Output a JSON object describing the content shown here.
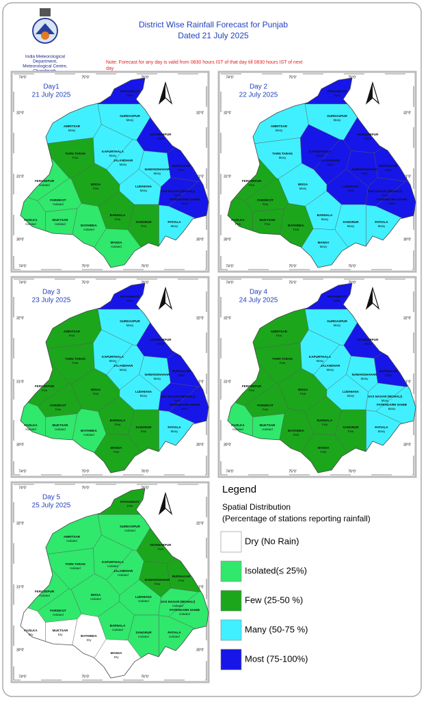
{
  "header": {
    "org": [
      "India Meteorological",
      "Department,",
      "Meteorological Centre,",
      "Chandigarh."
    ],
    "title": "District Wise Rainfall Forecast for Punjab",
    "dated": "Dated 21 July 2025",
    "note": [
      "Note: Forecast for any day is valid from 0830 hours IST of that day till 0830 hours IST of next",
      "day"
    ]
  },
  "graticule": {
    "lon": [
      "74°0'",
      "75°0'",
      "76°0'"
    ],
    "lat": [
      "32°0'",
      "31°0'",
      "30°0'"
    ]
  },
  "districts": [
    "PATHANKOT",
    "GURDASPUR",
    "AMRITSAR",
    "HOSHIARPUR",
    "TARN TARAN",
    "KAPURTHALA",
    "JALANDHAR",
    "NAWANSHAHAR",
    "RUPNAGAR",
    "FEROZEPUR",
    "MOGA",
    "LUDHIANA",
    "SAS NAGAR (MOHALI)",
    "FATEHGARH SAHIB",
    "FARIDKOT",
    "BARNALA",
    "FAZILKA",
    "MUKTSAR",
    "SANGRUR",
    "PATIALA",
    "BATHINDA",
    "MANSA"
  ],
  "maps": [
    {
      "day": "Day1",
      "date": "21 July 2025",
      "status": [
        "Most",
        "Many",
        "Many",
        "Most",
        "Few",
        "Many",
        "Many",
        "Many",
        "Most",
        "Isolated",
        "Few",
        "Many",
        "Most",
        "Most",
        "Isolated",
        "Few",
        "Isolated",
        "Isolated",
        "Few",
        "Many",
        "Isolated",
        "Isolated"
      ]
    },
    {
      "day": "Day 2",
      "date": "22 July 2025",
      "status": [
        "Most",
        "Many",
        "Many",
        "Most",
        "Many",
        "Most",
        "Most",
        "Most",
        "Most",
        "Few",
        "Many",
        "Most",
        "Most",
        "Most",
        "Few",
        "Many",
        "Few",
        "Few",
        "Many",
        "Many",
        "Few",
        "Many"
      ]
    },
    {
      "day": "Day 3",
      "date": "23 July 2025",
      "status": [
        "Most",
        "Many",
        "Few",
        "Most",
        "Few",
        "Many",
        "Many",
        "Many",
        "Most",
        "Few",
        "Few",
        "Many",
        "Most",
        "Most",
        "Few",
        "Few",
        "Isolated",
        "Isolated",
        "Few",
        "Many",
        "Isolated",
        "Few"
      ]
    },
    {
      "day": "Day 4",
      "date": "24 July 2025",
      "status": [
        "Most",
        "Many",
        "Few",
        "Most",
        "Few",
        "Many",
        "Many",
        "Many",
        "Most",
        "Few",
        "Few",
        "Many",
        "Many",
        "Many",
        "Few",
        "Few",
        "Isolated",
        "Isolated",
        "Few",
        "Many",
        "Few",
        "Few"
      ]
    },
    {
      "day": "Day 5",
      "date": "25 July 2025",
      "status": [
        "Few",
        "Isolated",
        "Isolated",
        "Few",
        "Isolated",
        "Isolated",
        "Isolated",
        "Few",
        "Few",
        "Isolated",
        "Isolated",
        "Isolated",
        "Isolated",
        "Isolated",
        "Isolated",
        "Isolated",
        "Dry",
        "Dry",
        "Isolated",
        "Isolated",
        "Dry",
        "Dry"
      ]
    }
  ],
  "legend": {
    "title": "Legend",
    "subtitle": "Spatial Distribution",
    "caption": "(Percentage of stations reporting rainfall)",
    "items": [
      {
        "label": "Dry (No Rain)",
        "color": "#ffffff"
      },
      {
        "label": "Isolated(≤ 25%)",
        "color": "#30e86c"
      },
      {
        "label": "Few (25-50 %)",
        "color": "#1ca61c"
      },
      {
        "label": "Many (50-75 %)",
        "color": "#40f0ff"
      },
      {
        "label": "Most (75-100%)",
        "color": "#1616e8"
      }
    ]
  }
}
